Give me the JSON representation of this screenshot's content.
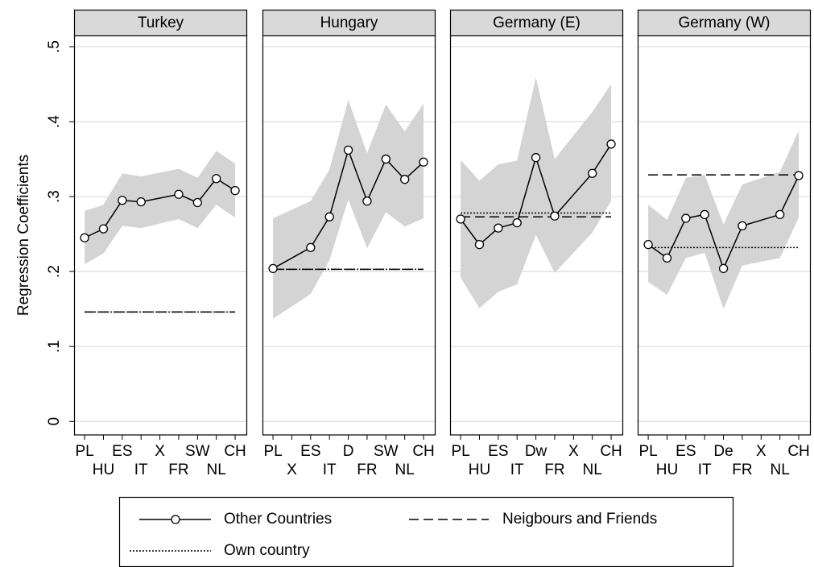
{
  "chart_data": {
    "type": "line",
    "y_label": "Regression Coefficients",
    "ylim": [
      -0.018,
      0.515
    ],
    "yticks": [
      0,
      {
        "value": 0.1,
        "label": ".1"
      },
      {
        "value": 0.2,
        "label": ".2"
      },
      {
        "value": 0.3,
        "label": ".3"
      },
      {
        "value": 0.4,
        "label": ".4"
      },
      {
        "value": 0.5,
        "label": ".5"
      }
    ],
    "xlim": [
      0.44,
      9.64
    ],
    "grid": true,
    "band_color": "#d4d4d4",
    "series": [
      {
        "name": "Other Countries",
        "color": "#000000",
        "dash": "none"
      },
      {
        "name": "Neigbours and Friends",
        "color": "#000000",
        "dash": "12 6"
      },
      {
        "name": "Own country",
        "color": "#000000",
        "dash": "2 2"
      }
    ],
    "panels": [
      {
        "title": "Turkey",
        "xticks": [
          {
            "value": 1,
            "label": "PL"
          },
          {
            "value": 2,
            "label": "HU"
          },
          {
            "value": 3,
            "label": "ES"
          },
          {
            "value": 4,
            "label": "IT"
          },
          {
            "value": 5,
            "label": "X"
          },
          {
            "value": 6,
            "label": "FR"
          },
          {
            "value": 7,
            "label": "SW"
          },
          {
            "value": 8,
            "label": "NL"
          },
          {
            "value": 9,
            "label": "CH"
          }
        ],
        "x": [
          1,
          2,
          3,
          4,
          6,
          7,
          8,
          9
        ],
        "values": [
          0.245,
          0.257,
          0.295,
          0.293,
          0.303,
          0.292,
          0.324,
          0.308
        ],
        "upper": [
          0.281,
          0.289,
          0.331,
          0.327,
          0.337,
          0.325,
          0.361,
          0.344
        ],
        "lower": [
          0.21,
          0.224,
          0.261,
          0.258,
          0.27,
          0.258,
          0.289,
          0.272
        ],
        "neighbours": 0.146,
        "own": 0.146
      },
      {
        "title": "Hungary",
        "xticks": [
          {
            "value": 1,
            "label": "PL"
          },
          {
            "value": 2,
            "label": "X"
          },
          {
            "value": 3,
            "label": "ES"
          },
          {
            "value": 4,
            "label": "IT"
          },
          {
            "value": 5,
            "label": "D"
          },
          {
            "value": 6,
            "label": "FR"
          },
          {
            "value": 7,
            "label": "SW"
          },
          {
            "value": 8,
            "label": "NL"
          },
          {
            "value": 9,
            "label": "CH"
          }
        ],
        "x": [
          1,
          3,
          4,
          5,
          6,
          7,
          8,
          9
        ],
        "values": [
          0.204,
          0.232,
          0.273,
          0.362,
          0.294,
          0.35,
          0.323,
          0.346
        ],
        "upper": [
          0.271,
          0.294,
          0.336,
          0.429,
          0.358,
          0.423,
          0.387,
          0.424
        ],
        "lower": [
          0.137,
          0.17,
          0.215,
          0.296,
          0.231,
          0.279,
          0.26,
          0.271
        ],
        "neighbours": 0.203,
        "own": 0.203
      },
      {
        "title": "Germany (E)",
        "xticks": [
          {
            "value": 1,
            "label": "PL"
          },
          {
            "value": 2,
            "label": "HU"
          },
          {
            "value": 3,
            "label": "ES"
          },
          {
            "value": 4,
            "label": "IT"
          },
          {
            "value": 5,
            "label": "Dw"
          },
          {
            "value": 6,
            "label": "FR"
          },
          {
            "value": 7,
            "label": "X"
          },
          {
            "value": 8,
            "label": "NL"
          },
          {
            "value": 9,
            "label": "CH"
          }
        ],
        "x": [
          1,
          2,
          3,
          4,
          5,
          6,
          8,
          9
        ],
        "values": [
          0.27,
          0.236,
          0.258,
          0.265,
          0.352,
          0.274,
          0.331,
          0.37
        ],
        "upper": [
          0.349,
          0.321,
          0.343,
          0.348,
          0.459,
          0.35,
          0.413,
          0.45
        ],
        "lower": [
          0.192,
          0.151,
          0.173,
          0.183,
          0.249,
          0.198,
          0.252,
          0.294
        ],
        "neighbours": 0.273,
        "own": 0.278
      },
      {
        "title": "Germany (W)",
        "xticks": [
          {
            "value": 1,
            "label": "PL"
          },
          {
            "value": 2,
            "label": "HU"
          },
          {
            "value": 3,
            "label": "ES"
          },
          {
            "value": 4,
            "label": "IT"
          },
          {
            "value": 5,
            "label": "De"
          },
          {
            "value": 6,
            "label": "FR"
          },
          {
            "value": 7,
            "label": "X"
          },
          {
            "value": 8,
            "label": "NL"
          },
          {
            "value": 9,
            "label": "CH"
          }
        ],
        "x": [
          1,
          2,
          3,
          4,
          5,
          6,
          8,
          9
        ],
        "values": [
          0.236,
          0.218,
          0.271,
          0.276,
          0.204,
          0.261,
          0.276,
          0.328
        ],
        "upper": [
          0.289,
          0.269,
          0.325,
          0.329,
          0.263,
          0.316,
          0.333,
          0.388
        ],
        "lower": [
          0.186,
          0.169,
          0.218,
          0.225,
          0.15,
          0.208,
          0.218,
          0.272
        ],
        "neighbours": 0.329,
        "own": 0.232
      }
    ]
  }
}
